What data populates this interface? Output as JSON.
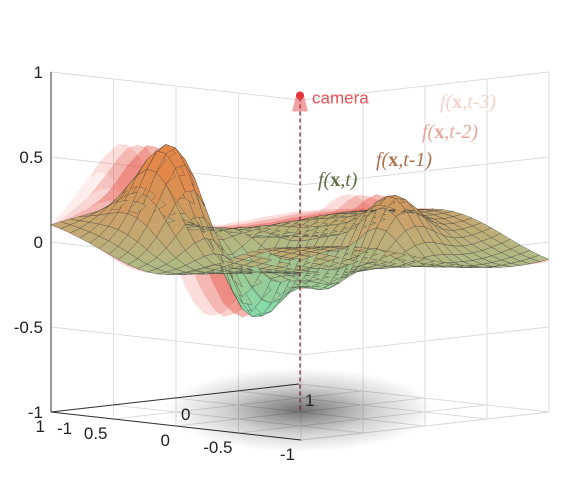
{
  "chart_data": {
    "type": "surface",
    "title": "",
    "xlabel": "",
    "ylabel": "",
    "zlabel": "",
    "xlim": [
      -1,
      1
    ],
    "ylim": [
      -1,
      1
    ],
    "zlim": [
      -1,
      1
    ],
    "x_ticks": [
      "1",
      "0.5",
      "0",
      "-0.5",
      "-1"
    ],
    "y_ticks": [
      "-1",
      "0",
      "1"
    ],
    "z_ticks": [
      "1",
      "0.5",
      "0",
      "-0.5",
      "-1"
    ],
    "grid": true,
    "surfaces": [
      {
        "label_main": "f(",
        "label_bold": "x",
        "label_rest": ",t)",
        "phase": 0.0,
        "opacity": 0.95
      },
      {
        "label_main": "f(",
        "label_bold": "x",
        "label_rest": ",t-1)",
        "phase": 0.12,
        "opacity": 0.45
      },
      {
        "label_main": "f(",
        "label_bold": "x",
        "label_rest": ",t-2)",
        "phase": 0.24,
        "opacity": 0.28
      },
      {
        "label_main": "f(",
        "label_bold": "x",
        "label_rest": ",t-3)",
        "phase": 0.36,
        "opacity": 0.18
      }
    ],
    "camera": {
      "label": "camera",
      "position": [
        0,
        0,
        0.85
      ]
    },
    "colors": {
      "surface_low": "#7fe3b2",
      "surface_high": "#e4884a",
      "history": "#e8564a",
      "camera": "#e2343a"
    }
  }
}
